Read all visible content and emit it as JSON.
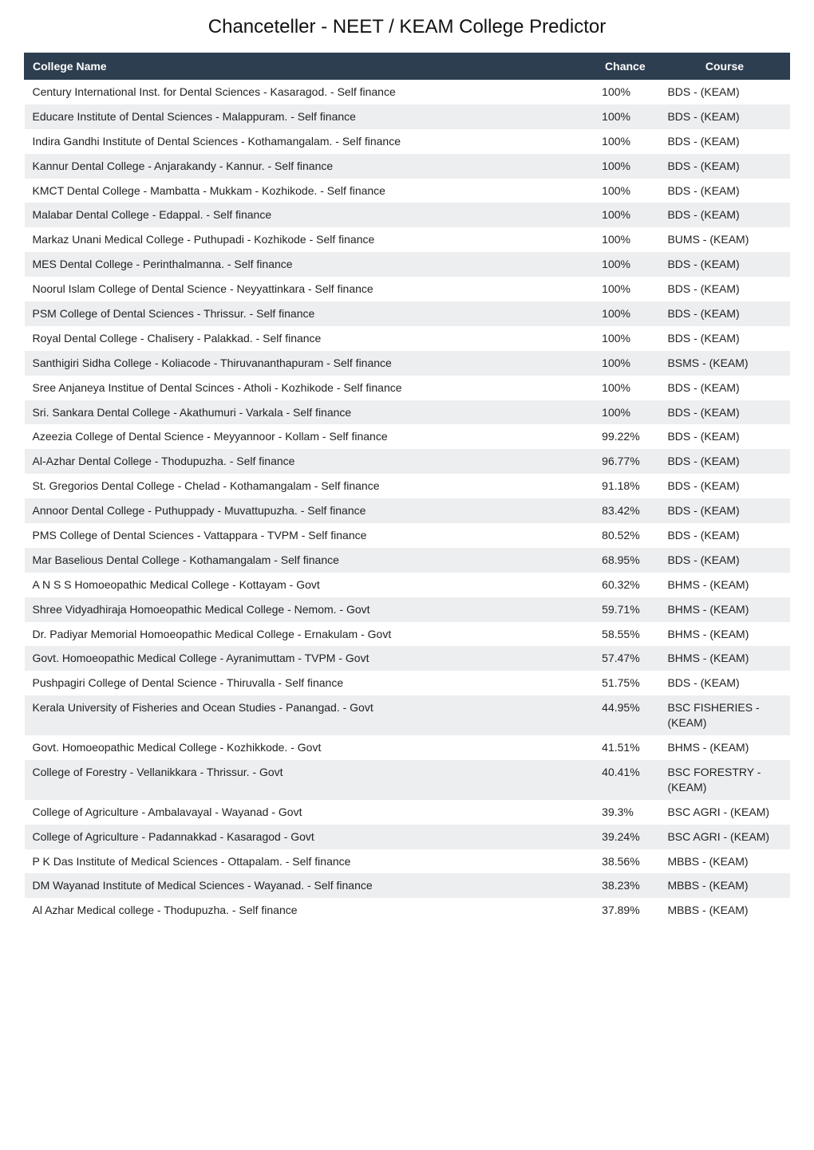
{
  "title": "Chanceteller - NEET / KEAM College Predictor",
  "table": {
    "columns": [
      "College Name",
      "Chance",
      "Course"
    ],
    "column_widths": [
      "74%",
      "9%",
      "17%"
    ],
    "header_bg": "#2d3e50",
    "header_fg": "#ffffff",
    "row_bg_odd": "#ffffff",
    "row_bg_even": "#eceef0",
    "font_size": 14,
    "rows": [
      {
        "name": "Century International Inst. for Dental Sciences - Kasaragod. - Self finance",
        "chance": "100%",
        "course": "BDS - (KEAM)"
      },
      {
        "name": "Educare Institute of Dental Sciences - Malappuram. - Self finance",
        "chance": "100%",
        "course": "BDS - (KEAM)"
      },
      {
        "name": "Indira Gandhi Institute of Dental Sciences - Kothamangalam. - Self finance",
        "chance": "100%",
        "course": "BDS - (KEAM)"
      },
      {
        "name": "Kannur Dental College - Anjarakandy - Kannur. - Self finance",
        "chance": "100%",
        "course": "BDS - (KEAM)"
      },
      {
        "name": "KMCT Dental College - Mambatta - Mukkam - Kozhikode. - Self finance",
        "chance": "100%",
        "course": "BDS - (KEAM)"
      },
      {
        "name": "Malabar Dental College - Edappal. - Self finance",
        "chance": "100%",
        "course": "BDS - (KEAM)"
      },
      {
        "name": "Markaz Unani Medical College - Puthupadi - Kozhikode - Self finance",
        "chance": "100%",
        "course": "BUMS - (KEAM)"
      },
      {
        "name": "MES Dental College - Perinthalmanna. - Self finance",
        "chance": "100%",
        "course": "BDS - (KEAM)"
      },
      {
        "name": "Noorul Islam College of Dental Science - Neyyattinkara - Self finance",
        "chance": "100%",
        "course": "BDS - (KEAM)"
      },
      {
        "name": "PSM College of Dental Sciences - Thrissur. - Self finance",
        "chance": "100%",
        "course": "BDS - (KEAM)"
      },
      {
        "name": "Royal Dental College - Chalisery - Palakkad. - Self finance",
        "chance": "100%",
        "course": "BDS - (KEAM)"
      },
      {
        "name": "Santhigiri Sidha College - Koliacode - Thiruvananthapuram - Self finance",
        "chance": "100%",
        "course": "BSMS - (KEAM)"
      },
      {
        "name": "Sree Anjaneya Institue of Dental Scinces - Atholi - Kozhikode - Self finance",
        "chance": "100%",
        "course": "BDS - (KEAM)"
      },
      {
        "name": "Sri. Sankara Dental College - Akathumuri - Varkala - Self finance",
        "chance": "100%",
        "course": "BDS - (KEAM)"
      },
      {
        "name": "Azeezia College of Dental Science - Meyyannoor - Kollam - Self finance",
        "chance": "99.22%",
        "course": "BDS - (KEAM)"
      },
      {
        "name": "Al-Azhar Dental College - Thodupuzha. - Self finance",
        "chance": "96.77%",
        "course": "BDS - (KEAM)"
      },
      {
        "name": "St. Gregorios Dental College - Chelad - Kothamangalam - Self finance",
        "chance": "91.18%",
        "course": "BDS - (KEAM)"
      },
      {
        "name": "Annoor Dental College - Puthuppady - Muvattupuzha. - Self finance",
        "chance": "83.42%",
        "course": "BDS - (KEAM)"
      },
      {
        "name": "PMS College of Dental Sciences - Vattappara - TVPM - Self finance",
        "chance": "80.52%",
        "course": "BDS - (KEAM)"
      },
      {
        "name": "Mar Baselious Dental College - Kothamangalam - Self finance",
        "chance": "68.95%",
        "course": "BDS - (KEAM)"
      },
      {
        "name": "A N S S Homoeopathic Medical College - Kottayam - Govt",
        "chance": "60.32%",
        "course": "BHMS - (KEAM)"
      },
      {
        "name": "Shree Vidyadhiraja Homoeopathic Medical College - Nemom. - Govt",
        "chance": "59.71%",
        "course": "BHMS - (KEAM)"
      },
      {
        "name": "Dr. Padiyar Memorial Homoeopathic Medical College - Ernakulam - Govt",
        "chance": "58.55%",
        "course": "BHMS - (KEAM)"
      },
      {
        "name": "Govt. Homoeopathic Medical College - Ayranimuttam - TVPM - Govt",
        "chance": "57.47%",
        "course": "BHMS - (KEAM)"
      },
      {
        "name": "Pushpagiri College of Dental Science - Thiruvalla - Self finance",
        "chance": "51.75%",
        "course": "BDS - (KEAM)"
      },
      {
        "name": "Kerala University of Fisheries and Ocean Studies - Panangad. - Govt",
        "chance": "44.95%",
        "course": "BSC FISHERIES - (KEAM)"
      },
      {
        "name": "Govt. Homoeopathic Medical College - Kozhikkode. - Govt",
        "chance": "41.51%",
        "course": "BHMS - (KEAM)"
      },
      {
        "name": "College of Forestry - Vellanikkara - Thrissur. - Govt",
        "chance": "40.41%",
        "course": "BSC FORESTRY - (KEAM)"
      },
      {
        "name": "College of Agriculture - Ambalavayal - Wayanad - Govt",
        "chance": "39.3%",
        "course": "BSC AGRI - (KEAM)"
      },
      {
        "name": "College of Agriculture - Padannakkad - Kasaragod - Govt",
        "chance": "39.24%",
        "course": "BSC AGRI - (KEAM)"
      },
      {
        "name": "P K Das Institute of Medical Sciences - Ottapalam. - Self finance",
        "chance": "38.56%",
        "course": "MBBS - (KEAM)"
      },
      {
        "name": "DM Wayanad Institute of Medical Sciences - Wayanad. - Self finance",
        "chance": "38.23%",
        "course": "MBBS - (KEAM)"
      },
      {
        "name": "Al Azhar Medical college - Thodupuzha. - Self finance",
        "chance": "37.89%",
        "course": "MBBS - (KEAM)"
      }
    ]
  }
}
